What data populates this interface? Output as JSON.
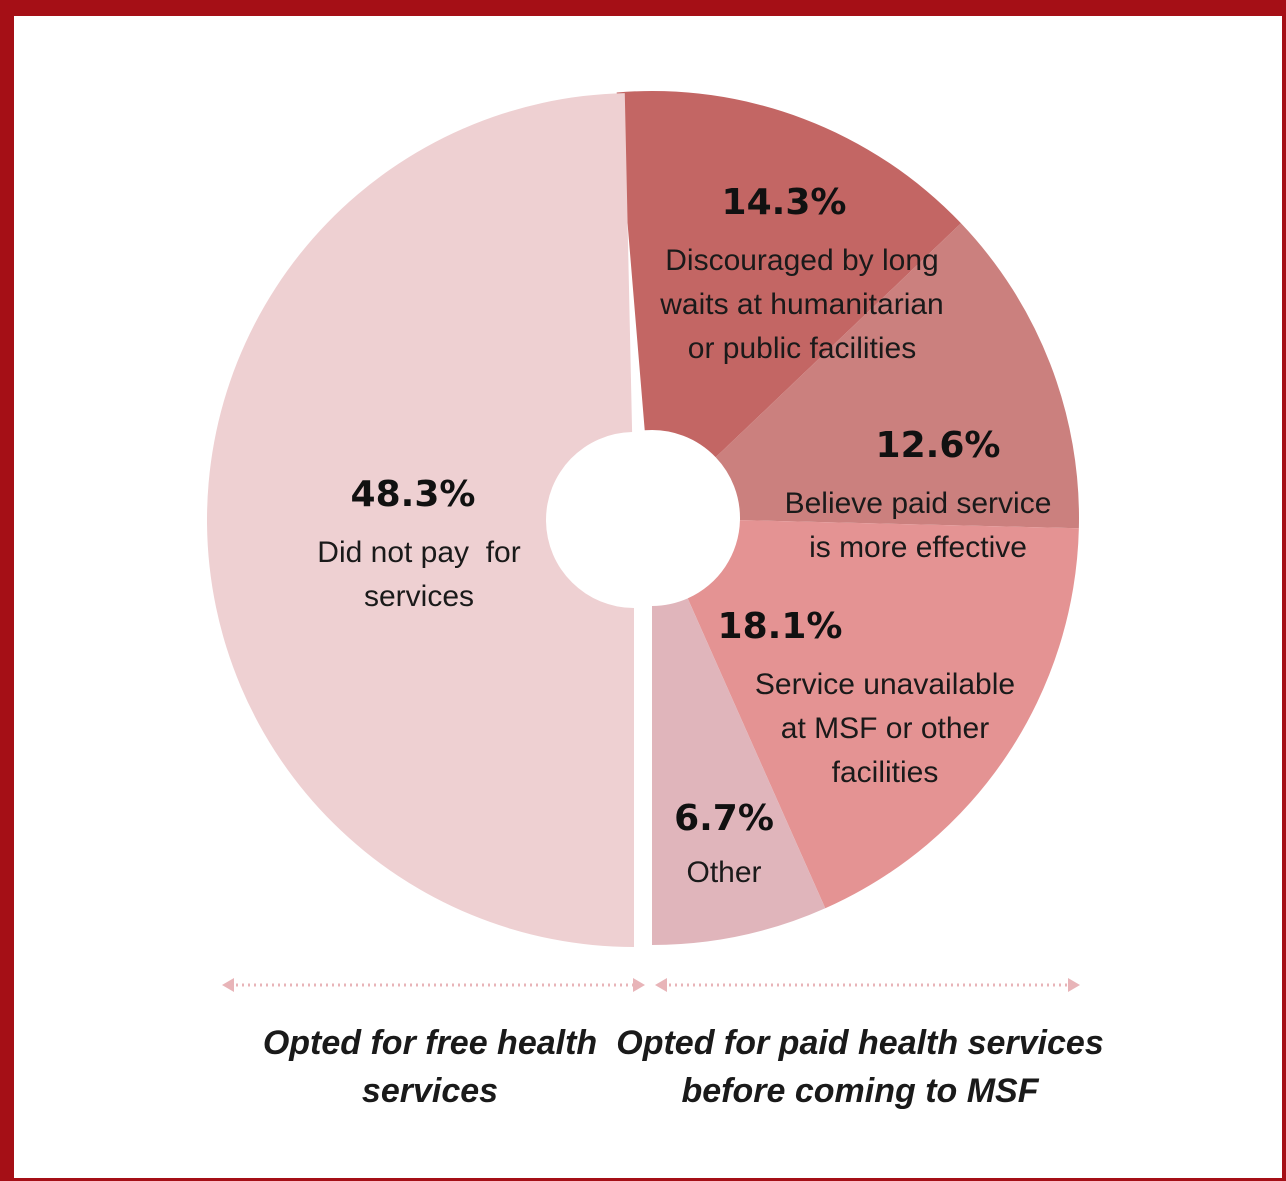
{
  "chart_data": {
    "type": "pie",
    "donut": true,
    "title": "",
    "slices": [
      {
        "value": 48.3,
        "label": "48.3%",
        "desc": [
          "Did not pay  for",
          "services"
        ],
        "color": "#eed0d2",
        "group": "free"
      },
      {
        "value": 14.3,
        "label": "14.3%",
        "desc": [
          "Discouraged by long",
          "waits at humanitarian",
          "or public facilities"
        ],
        "color": "#c36664",
        "group": "paid"
      },
      {
        "value": 12.6,
        "label": "12.6%",
        "desc": [
          "Believe paid service",
          "is more effective"
        ],
        "color": "#cb807e",
        "group": "paid"
      },
      {
        "value": 18.1,
        "label": "18.1%",
        "desc": [
          "Service unavailable",
          "at MSF or other",
          "facilities"
        ],
        "color": "#e49393",
        "group": "paid"
      },
      {
        "value": 6.7,
        "label": "6.7%",
        "desc": [
          "Other"
        ],
        "color": "#e0b5bb",
        "group": "paid"
      }
    ],
    "groups": {
      "free": [
        "Opted for free health",
        "services"
      ],
      "paid": [
        "Opted for paid health services",
        "before coming to MSF"
      ]
    },
    "arrow_color": "#e8b4b8",
    "border_color": "#a50f16"
  }
}
